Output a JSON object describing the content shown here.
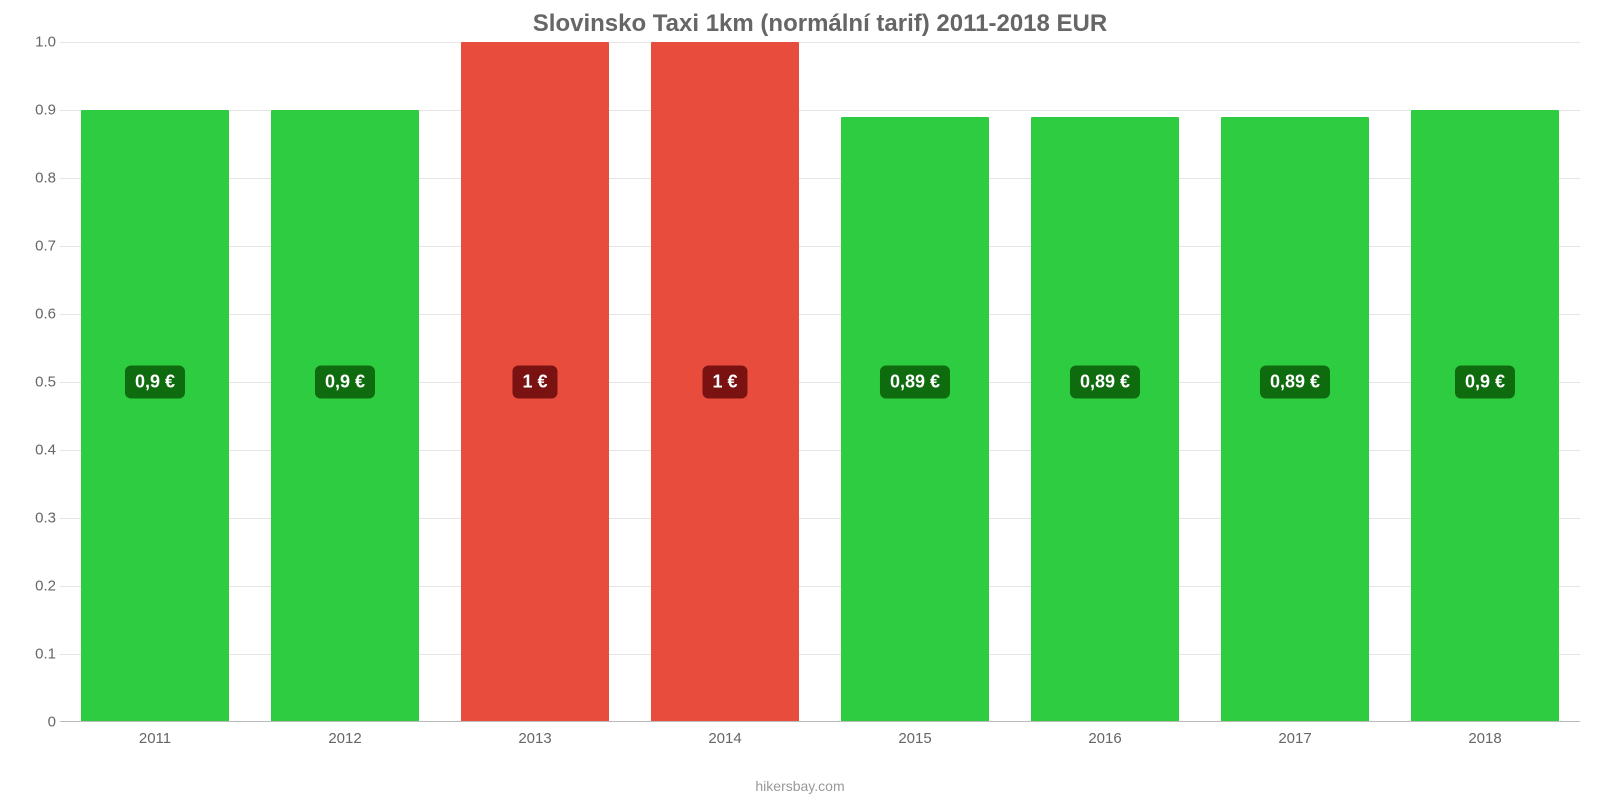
{
  "chart": {
    "type": "bar",
    "title": "Slovinsko Taxi 1km (normální tarif) 2011-2018 EUR",
    "title_color": "#666666",
    "title_fontsize": 24,
    "background_color": "#ffffff",
    "grid_color": "#e5e5e5",
    "axis_label_color": "#666666",
    "axis_fontsize": 15,
    "bar_width_ratio": 0.78,
    "y_axis": {
      "min": 0,
      "max": 1.0,
      "ticks": [
        {
          "value": 0,
          "label": "0"
        },
        {
          "value": 0.1,
          "label": "0.1"
        },
        {
          "value": 0.2,
          "label": "0.2"
        },
        {
          "value": 0.3,
          "label": "0.3"
        },
        {
          "value": 0.4,
          "label": "0.4"
        },
        {
          "value": 0.5,
          "label": "0.5"
        },
        {
          "value": 0.6,
          "label": "0.6"
        },
        {
          "value": 0.7,
          "label": "0.7"
        },
        {
          "value": 0.8,
          "label": "0.8"
        },
        {
          "value": 0.9,
          "label": "0.9"
        },
        {
          "value": 1.0,
          "label": "1.0"
        }
      ]
    },
    "colors": {
      "green_bar": "#2ecc40",
      "red_bar": "#e74c3c",
      "green_badge": "#0e6b0e",
      "red_badge": "#7a1212"
    },
    "label_fontsize": 18,
    "label_text_color": "#ffffff",
    "data": [
      {
        "category": "2011",
        "value": 0.9,
        "label": "0,9 €",
        "bar_color": "#2ecc40",
        "badge_color": "#0e6b0e"
      },
      {
        "category": "2012",
        "value": 0.9,
        "label": "0,9 €",
        "bar_color": "#2ecc40",
        "badge_color": "#0e6b0e"
      },
      {
        "category": "2013",
        "value": 1.0,
        "label": "1 €",
        "bar_color": "#e74c3c",
        "badge_color": "#7a1212"
      },
      {
        "category": "2014",
        "value": 1.0,
        "label": "1 €",
        "bar_color": "#e74c3c",
        "badge_color": "#7a1212"
      },
      {
        "category": "2015",
        "value": 0.89,
        "label": "0,89 €",
        "bar_color": "#2ecc40",
        "badge_color": "#0e6b0e"
      },
      {
        "category": "2016",
        "value": 0.89,
        "label": "0,89 €",
        "bar_color": "#2ecc40",
        "badge_color": "#0e6b0e"
      },
      {
        "category": "2017",
        "value": 0.89,
        "label": "0,89 €",
        "bar_color": "#2ecc40",
        "badge_color": "#0e6b0e"
      },
      {
        "category": "2018",
        "value": 0.9,
        "label": "0,9 €",
        "bar_color": "#2ecc40",
        "badge_color": "#0e6b0e"
      }
    ],
    "footer": "hikersbay.com",
    "footer_color": "#999999",
    "footer_fontsize": 14
  }
}
